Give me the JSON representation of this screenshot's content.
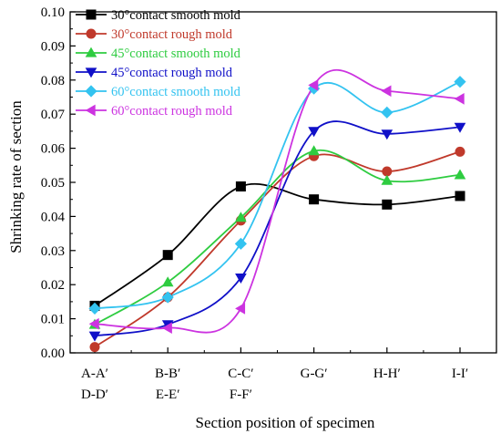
{
  "chart_data": {
    "type": "line",
    "xlabel": "Section position of specimen",
    "ylabel": "Shrinking rate of section",
    "ylim": [
      0.0,
      0.1
    ],
    "yticks": [
      "0.00",
      "0.01",
      "0.02",
      "0.03",
      "0.04",
      "0.05",
      "0.06",
      "0.07",
      "0.08",
      "0.09",
      "0.10"
    ],
    "categories": [
      [
        "A-A′",
        "D-D′"
      ],
      [
        "B-B′",
        "E-E′"
      ],
      [
        "C-C′",
        "F-F′"
      ],
      [
        "G-G′"
      ],
      [
        "H-H′"
      ],
      [
        "I-I′"
      ]
    ],
    "smooth": true,
    "legend_position": "top-left",
    "series": [
      {
        "name": "30°contact smooth mold",
        "color": "#000000",
        "marker": "square",
        "values": [
          0.0138,
          0.0287,
          0.0488,
          0.045,
          0.0435,
          0.046
        ]
      },
      {
        "name": "30°contact rough mold",
        "color": "#c0392b",
        "marker": "circle",
        "values": [
          0.0017,
          0.0163,
          0.0388,
          0.0577,
          0.0532,
          0.059
        ]
      },
      {
        "name": "45°contact smooth mold",
        "color": "#2ecc40",
        "marker": "triangle-up",
        "values": [
          0.0083,
          0.0207,
          0.0397,
          0.0592,
          0.0505,
          0.0522
        ]
      },
      {
        "name": "45°contact rough mold",
        "color": "#1010c8",
        "marker": "triangle-down",
        "values": [
          0.005,
          0.0083,
          0.022,
          0.065,
          0.0642,
          0.0662
        ]
      },
      {
        "name": "60°contact smooth mold",
        "color": "#33c3f0",
        "marker": "diamond",
        "values": [
          0.013,
          0.0163,
          0.032,
          0.0775,
          0.0705,
          0.0795
        ]
      },
      {
        "name": "60°contact rough mold",
        "color": "#cc33e0",
        "marker": "triangle-left",
        "values": [
          0.0085,
          0.0073,
          0.013,
          0.0785,
          0.0768,
          0.0745
        ]
      }
    ]
  }
}
